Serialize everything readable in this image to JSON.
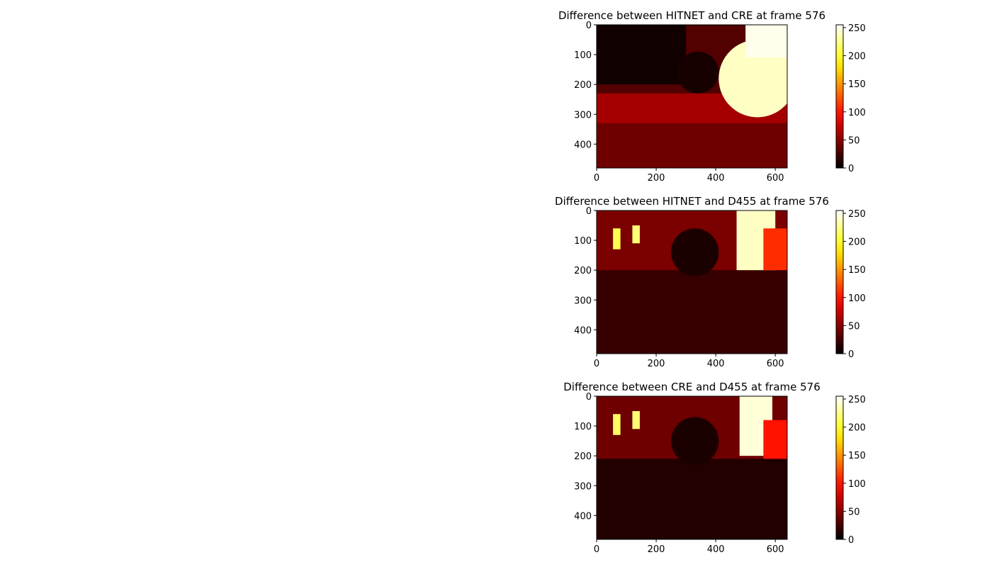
{
  "chart_data": [
    {
      "type": "heatmap",
      "title": "Difference between HITNET and CRE at frame 576",
      "colormap": "hot",
      "xlim": [
        0,
        640
      ],
      "ylim": [
        480,
        0
      ],
      "xticks": [
        0,
        200,
        400,
        600
      ],
      "yticks": [
        0,
        100,
        200,
        300,
        400
      ],
      "colorbar": {
        "range": [
          0,
          255
        ],
        "ticks": [
          0,
          50,
          100,
          150,
          200,
          250
        ]
      },
      "regions": [
        {
          "label": "background",
          "x": [
            0,
            640
          ],
          "y": [
            0,
            480
          ],
          "value": 30
        },
        {
          "label": "top-left-dark",
          "x": [
            0,
            300
          ],
          "y": [
            0,
            200
          ],
          "value": 6
        },
        {
          "label": "mid-band",
          "x": [
            0,
            640
          ],
          "y": [
            230,
            330
          ],
          "value": 60
        },
        {
          "label": "bottom",
          "x": [
            0,
            640
          ],
          "y": [
            330,
            480
          ],
          "value": 40
        },
        {
          "label": "bright-right",
          "cx": 540,
          "cy": 180,
          "r": 130,
          "value": 240
        },
        {
          "label": "bright-top-right",
          "x": [
            500,
            640
          ],
          "y": [
            0,
            110
          ],
          "value": 250
        },
        {
          "label": "tree",
          "cx": 340,
          "cy": 160,
          "r": 70,
          "value": 8
        }
      ]
    },
    {
      "type": "heatmap",
      "title": "Difference between HITNET and D455 at frame 576",
      "colormap": "hot",
      "xlim": [
        0,
        640
      ],
      "ylim": [
        480,
        0
      ],
      "xticks": [
        0,
        200,
        400,
        600
      ],
      "yticks": [
        0,
        100,
        200,
        300,
        400
      ],
      "colorbar": {
        "range": [
          0,
          255
        ],
        "ticks": [
          0,
          50,
          100,
          150,
          200,
          250
        ]
      },
      "regions": [
        {
          "label": "background",
          "x": [
            0,
            640
          ],
          "y": [
            0,
            480
          ],
          "value": 20
        },
        {
          "label": "upper-band",
          "x": [
            0,
            640
          ],
          "y": [
            0,
            200
          ],
          "value": 45
        },
        {
          "label": "bright-right",
          "x": [
            470,
            600
          ],
          "y": [
            0,
            200
          ],
          "value": 240
        },
        {
          "label": "red-right",
          "x": [
            560,
            640
          ],
          "y": [
            60,
            200
          ],
          "value": 110
        },
        {
          "label": "post-1",
          "x": [
            55,
            80
          ],
          "y": [
            60,
            130
          ],
          "value": 210
        },
        {
          "label": "post-2",
          "x": [
            120,
            145
          ],
          "y": [
            50,
            110
          ],
          "value": 220
        },
        {
          "label": "tree",
          "cx": 330,
          "cy": 140,
          "r": 80,
          "value": 10
        }
      ]
    },
    {
      "type": "heatmap",
      "title": "Difference between CRE and D455 at frame 576",
      "colormap": "hot",
      "xlim": [
        0,
        640
      ],
      "ylim": [
        480,
        0
      ],
      "xticks": [
        0,
        200,
        400,
        600
      ],
      "yticks": [
        0,
        100,
        200,
        300,
        400
      ],
      "colorbar": {
        "range": [
          0,
          255
        ],
        "ticks": [
          0,
          50,
          100,
          150,
          200,
          250
        ]
      },
      "regions": [
        {
          "label": "background",
          "x": [
            0,
            640
          ],
          "y": [
            0,
            480
          ],
          "value": 12
        },
        {
          "label": "upper-band",
          "x": [
            0,
            640
          ],
          "y": [
            0,
            210
          ],
          "value": 40
        },
        {
          "label": "bright-right",
          "x": [
            480,
            590
          ],
          "y": [
            0,
            200
          ],
          "value": 245
        },
        {
          "label": "red-right",
          "x": [
            560,
            640
          ],
          "y": [
            80,
            210
          ],
          "value": 100
        },
        {
          "label": "post-1",
          "x": [
            55,
            80
          ],
          "y": [
            60,
            130
          ],
          "value": 215
        },
        {
          "label": "post-2",
          "x": [
            120,
            145
          ],
          "y": [
            50,
            110
          ],
          "value": 220
        },
        {
          "label": "tree",
          "cx": 330,
          "cy": 150,
          "r": 80,
          "value": 10
        }
      ]
    }
  ]
}
